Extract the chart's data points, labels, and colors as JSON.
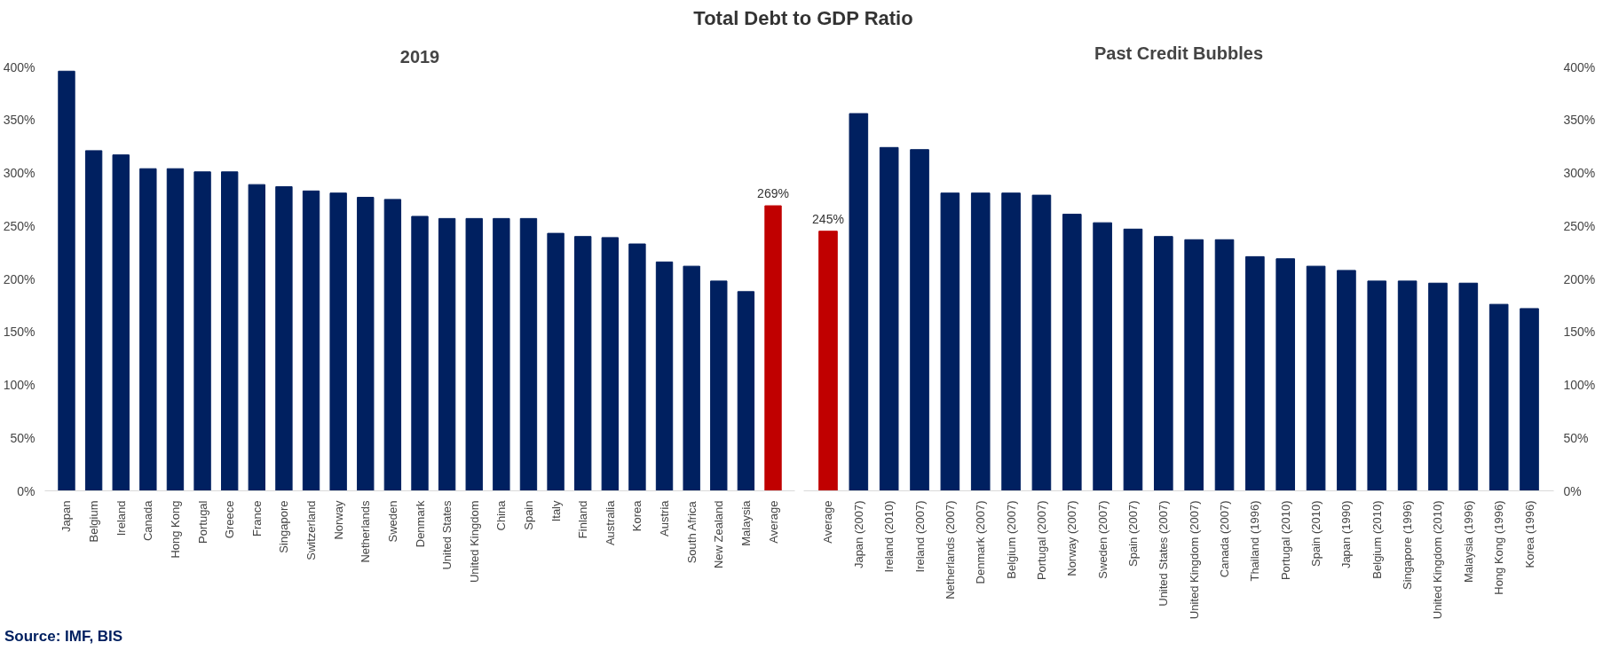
{
  "chart_data": [
    {
      "type": "bar",
      "title": "Total Debt to GDP Ratio",
      "subtitle": "2019",
      "categories": [
        "Japan",
        "Belgium",
        "Ireland",
        "Canada",
        "Hong Kong",
        "Portugal",
        "Greece",
        "France",
        "Singapore",
        "Switzerland",
        "Norway",
        "Netherlands",
        "Sweden",
        "Denmark",
        "United States",
        "United Kingdom",
        "China",
        "Spain",
        "Italy",
        "Finland",
        "Australia",
        "Korea",
        "Austria",
        "South Africa",
        "New Zealand",
        "Malaysia",
        "Average"
      ],
      "values": [
        396,
        321,
        317,
        304,
        304,
        301,
        301,
        289,
        287,
        283,
        281,
        277,
        275,
        259,
        257,
        257,
        257,
        257,
        243,
        240,
        239,
        233,
        216,
        212,
        198,
        188,
        269
      ],
      "colors": [
        "#002060",
        "#002060",
        "#002060",
        "#002060",
        "#002060",
        "#002060",
        "#002060",
        "#002060",
        "#002060",
        "#002060",
        "#002060",
        "#002060",
        "#002060",
        "#002060",
        "#002060",
        "#002060",
        "#002060",
        "#002060",
        "#002060",
        "#002060",
        "#002060",
        "#002060",
        "#002060",
        "#002060",
        "#002060",
        "#002060",
        "#c00000"
      ],
      "value_labels": [
        null,
        null,
        null,
        null,
        null,
        null,
        null,
        null,
        null,
        null,
        null,
        null,
        null,
        null,
        null,
        null,
        null,
        null,
        null,
        null,
        null,
        null,
        null,
        null,
        null,
        null,
        "269%"
      ],
      "ylim": [
        0,
        400
      ],
      "yticks": [
        {
          "value": 0,
          "label": "0%"
        },
        {
          "value": 50,
          "label": "50%"
        },
        {
          "value": 100,
          "label": "100%"
        },
        {
          "value": 150,
          "label": "150%"
        },
        {
          "value": 200,
          "label": "200%"
        },
        {
          "value": 250,
          "label": "250%"
        },
        {
          "value": 300,
          "label": "300%"
        },
        {
          "value": 350,
          "label": "350%"
        },
        {
          "value": 400,
          "label": "400%"
        }
      ],
      "grid": false,
      "annotations": [
        "Source: IMF, BIS"
      ]
    },
    {
      "type": "bar",
      "title": "Past Credit Bubbles",
      "categories": [
        "Average",
        "Japan (2007)",
        "Ireland (2010)",
        "Ireland (2007)",
        "Netherlands (2007)",
        "Denmark (2007)",
        "Belgium (2007)",
        "Portugal (2007)",
        "Norway (2007)",
        "Sweden (2007)",
        "Spain (2007)",
        "United States (2007)",
        "United Kingdom (2007)",
        "Canada (2007)",
        "Thailand (1996)",
        "Portugal (2010)",
        "Spain (2010)",
        "Japan (1990)",
        "Belgium (2010)",
        "Singapore (1996)",
        "United Kingdom (2010)",
        "Malaysia (1996)",
        "Hong Kong (1996)",
        "Korea (1996)"
      ],
      "values": [
        245,
        356,
        324,
        322,
        281,
        281,
        281,
        279,
        261,
        253,
        247,
        240,
        237,
        237,
        221,
        219,
        212,
        208,
        198,
        198,
        196,
        196,
        176,
        172
      ],
      "colors": [
        "#c00000",
        "#002060",
        "#002060",
        "#002060",
        "#002060",
        "#002060",
        "#002060",
        "#002060",
        "#002060",
        "#002060",
        "#002060",
        "#002060",
        "#002060",
        "#002060",
        "#002060",
        "#002060",
        "#002060",
        "#002060",
        "#002060",
        "#002060",
        "#002060",
        "#002060",
        "#002060",
        "#002060"
      ],
      "value_labels": [
        "245%",
        null,
        null,
        null,
        null,
        null,
        null,
        null,
        null,
        null,
        null,
        null,
        null,
        null,
        null,
        null,
        null,
        null,
        null,
        null,
        null,
        null,
        null,
        null
      ],
      "ylim": [
        0,
        400
      ],
      "yticks": [
        {
          "value": 0,
          "label": "0%"
        },
        {
          "value": 50,
          "label": "50%"
        },
        {
          "value": 100,
          "label": "100%"
        },
        {
          "value": 150,
          "label": "150%"
        },
        {
          "value": 200,
          "label": "200%"
        },
        {
          "value": 250,
          "label": "250%"
        },
        {
          "value": 300,
          "label": "300%"
        },
        {
          "value": 350,
          "label": "350%"
        },
        {
          "value": 400,
          "label": "400%"
        }
      ],
      "grid": false
    }
  ]
}
